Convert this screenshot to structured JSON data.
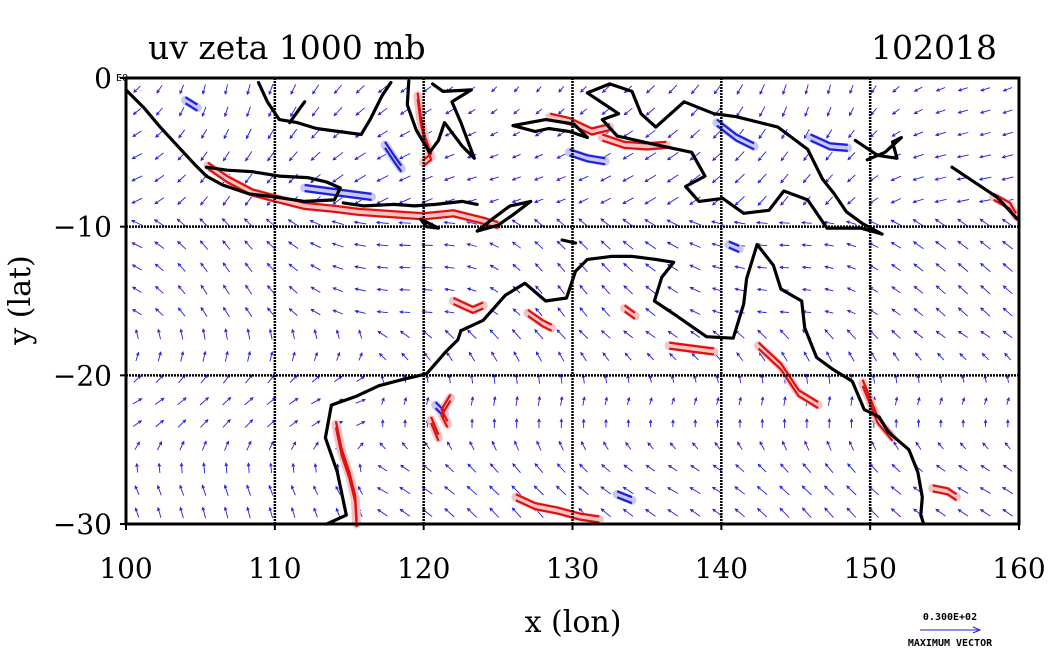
{
  "chart_data": {
    "type": "vector-field-contour-map",
    "title": "uv zeta 1000 mb",
    "date_label": "102018",
    "xlabel": "x (lon)",
    "ylabel": "y (lat)",
    "xlim": [
      100,
      160
    ],
    "ylim": [
      -30,
      0
    ],
    "x_ticks": [
      100,
      110,
      120,
      130,
      140,
      150,
      160
    ],
    "y_ticks": [
      0,
      -10,
      -20,
      -30
    ],
    "x_tick_labels": [
      "100",
      "110",
      "120",
      "130",
      "140",
      "150",
      "160"
    ],
    "y_tick_labels": [
      "0",
      "−10",
      "−20",
      "−30"
    ],
    "corner_label": "EQ",
    "grid": true,
    "vector_legend": {
      "magnitude": "0.300E+02",
      "label": "MAXIMUM VECTOR"
    },
    "colors": {
      "vectors": "#1f1fe0",
      "positive_contour": "#e01010",
      "positive_fill": "#f4c4c4",
      "negative_contour": "#1f1fe0",
      "negative_fill": "#c8c8f4",
      "coastline": "#000000",
      "grid": "#000000"
    },
    "coastlines": [
      [
        [
          100.0,
          -0.8
        ],
        [
          101.2,
          -2.0
        ],
        [
          102.3,
          -3.3
        ],
        [
          103.4,
          -4.5
        ],
        [
          104.6,
          -5.8
        ],
        [
          105.4,
          -6.6
        ]
      ],
      [
        [
          105.4,
          -6.0
        ],
        [
          106.8,
          -6.2
        ],
        [
          108.5,
          -6.3
        ],
        [
          110.3,
          -6.6
        ],
        [
          112.2,
          -6.7
        ],
        [
          113.5,
          -7.0
        ],
        [
          114.4,
          -7.4
        ],
        [
          114.0,
          -8.2
        ],
        [
          112.0,
          -8.3
        ],
        [
          110.0,
          -8.0
        ],
        [
          108.3,
          -7.8
        ],
        [
          106.5,
          -7.2
        ],
        [
          105.4,
          -6.6
        ]
      ],
      [
        [
          108.9,
          -0.3
        ],
        [
          109.5,
          -1.6
        ],
        [
          110.3,
          -2.8
        ],
        [
          111.5,
          -3.0
        ],
        [
          112.8,
          -3.4
        ],
        [
          114.3,
          -3.6
        ],
        [
          115.8,
          -3.8
        ],
        [
          116.4,
          -2.8
        ],
        [
          117.2,
          -1.2
        ],
        [
          117.8,
          -0.3
        ]
      ],
      [
        [
          119.0,
          -0.2
        ],
        [
          118.9,
          -1.8
        ],
        [
          119.5,
          -3.5
        ],
        [
          120.4,
          -5.0
        ],
        [
          121.0,
          -4.2
        ],
        [
          121.4,
          -3.0
        ],
        [
          122.6,
          -4.6
        ],
        [
          123.4,
          -5.4
        ],
        [
          122.5,
          -3.0
        ],
        [
          121.9,
          -1.6
        ],
        [
          123.2,
          -0.8
        ],
        [
          121.3,
          -0.9
        ],
        [
          120.6,
          -0.4
        ]
      ],
      [
        [
          126.0,
          -3.2
        ],
        [
          127.5,
          -3.6
        ],
        [
          128.4,
          -3.4
        ],
        [
          129.8,
          -3.6
        ],
        [
          131.0,
          -4.0
        ],
        [
          130.1,
          -3.1
        ],
        [
          128.2,
          -2.8
        ],
        [
          126.0,
          -3.2
        ]
      ],
      [
        [
          114.6,
          -8.4
        ],
        [
          116.0,
          -8.6
        ],
        [
          118.0,
          -8.5
        ],
        [
          119.4,
          -8.6
        ],
        [
          120.8,
          -8.5
        ],
        [
          122.6,
          -8.3
        ],
        [
          123.6,
          -8.5
        ]
      ],
      [
        [
          119.8,
          -9.5
        ],
        [
          121.0,
          -10.1
        ],
        [
          120.2,
          -10.0
        ],
        [
          119.8,
          -9.5
        ]
      ],
      [
        [
          123.6,
          -10.3
        ],
        [
          124.6,
          -9.5
        ],
        [
          125.8,
          -8.6
        ],
        [
          127.2,
          -8.3
        ],
        [
          126.0,
          -9.2
        ],
        [
          125.0,
          -9.9
        ],
        [
          123.6,
          -10.3
        ]
      ],
      [
        [
          131.0,
          -1.0
        ],
        [
          132.5,
          -0.4
        ],
        [
          134.0,
          -0.9
        ],
        [
          134.6,
          -2.4
        ],
        [
          135.6,
          -3.3
        ],
        [
          137.5,
          -1.6
        ],
        [
          139.5,
          -2.4
        ],
        [
          141.0,
          -2.6
        ],
        [
          143.8,
          -3.3
        ],
        [
          145.8,
          -4.8
        ],
        [
          146.8,
          -6.8
        ],
        [
          147.6,
          -7.8
        ],
        [
          148.4,
          -9.0
        ],
        [
          149.5,
          -9.8
        ],
        [
          150.8,
          -10.5
        ],
        [
          149.4,
          -10.1
        ],
        [
          147.1,
          -10.1
        ],
        [
          145.8,
          -8.2
        ],
        [
          144.2,
          -7.6
        ],
        [
          143.2,
          -8.9
        ],
        [
          141.5,
          -9.1
        ],
        [
          140.1,
          -8.1
        ],
        [
          138.5,
          -8.3
        ],
        [
          137.6,
          -7.3
        ],
        [
          138.9,
          -6.6
        ],
        [
          138.0,
          -5.0
        ],
        [
          135.2,
          -4.4
        ],
        [
          133.0,
          -3.9
        ],
        [
          132.0,
          -2.8
        ],
        [
          133.1,
          -2.4
        ],
        [
          131.0,
          -1.0
        ]
      ],
      [
        [
          149.0,
          -4.2
        ],
        [
          150.5,
          -5.2
        ],
        [
          151.8,
          -5.4
        ],
        [
          151.5,
          -4.3
        ],
        [
          152.1,
          -4.0
        ],
        [
          151.0,
          -5.0
        ],
        [
          149.8,
          -5.5
        ]
      ],
      [
        [
          155.5,
          -6.0
        ],
        [
          157.0,
          -7.0
        ],
        [
          158.5,
          -8.0
        ],
        [
          159.9,
          -9.5
        ]
      ],
      [
        [
          122.5,
          -17.0
        ],
        [
          124.0,
          -16.3
        ],
        [
          125.5,
          -14.6
        ],
        [
          126.8,
          -13.8
        ],
        [
          128.2,
          -15.0
        ],
        [
          129.6,
          -14.8
        ],
        [
          130.2,
          -13.0
        ],
        [
          131.0,
          -12.2
        ],
        [
          132.6,
          -12.0
        ],
        [
          134.0,
          -12.0
        ],
        [
          135.6,
          -12.2
        ],
        [
          136.8,
          -12.4
        ],
        [
          136.0,
          -13.4
        ],
        [
          135.5,
          -15.0
        ],
        [
          137.0,
          -16.0
        ],
        [
          139.0,
          -17.4
        ],
        [
          140.8,
          -17.5
        ],
        [
          141.5,
          -15.2
        ],
        [
          141.7,
          -13.5
        ],
        [
          142.4,
          -11.2
        ],
        [
          143.5,
          -12.6
        ],
        [
          144.0,
          -14.2
        ],
        [
          145.4,
          -15.0
        ],
        [
          145.6,
          -16.8
        ],
        [
          146.4,
          -18.8
        ],
        [
          147.5,
          -19.6
        ],
        [
          148.8,
          -20.4
        ],
        [
          149.6,
          -22.3
        ],
        [
          150.6,
          -22.8
        ],
        [
          151.2,
          -23.8
        ],
        [
          152.6,
          -25.0
        ],
        [
          153.2,
          -26.5
        ],
        [
          153.5,
          -28.2
        ],
        [
          153.4,
          -29.4
        ],
        [
          153.6,
          -30.0
        ]
      ],
      [
        [
          113.5,
          -30.0
        ],
        [
          114.8,
          -29.4
        ],
        [
          114.2,
          -26.5
        ],
        [
          113.4,
          -24.2
        ],
        [
          113.8,
          -22.0
        ],
        [
          115.5,
          -21.4
        ],
        [
          117.0,
          -20.7
        ],
        [
          118.5,
          -20.3
        ],
        [
          120.2,
          -19.9
        ],
        [
          121.5,
          -18.4
        ],
        [
          122.3,
          -17.6
        ],
        [
          122.5,
          -17.0
        ]
      ],
      [
        [
          111.0,
          -3.0
        ],
        [
          112.0,
          -1.6
        ]
      ],
      [
        [
          129.3,
          -10.9
        ],
        [
          130.2,
          -11.1
        ]
      ]
    ],
    "positive_vorticity_contours": [
      [
        [
          105.5,
          -5.9
        ],
        [
          106.8,
          -6.8
        ],
        [
          108.5,
          -7.7
        ],
        [
          110.0,
          -8.1
        ],
        [
          112.0,
          -8.6
        ],
        [
          114.0,
          -8.8
        ],
        [
          115.6,
          -9.0
        ],
        [
          117.0,
          -9.1
        ],
        [
          118.5,
          -9.2
        ],
        [
          120.0,
          -9.3
        ],
        [
          122.0,
          -9.1
        ],
        [
          124.0,
          -9.6
        ],
        [
          125.0,
          -9.9
        ]
      ],
      [
        [
          114.1,
          -23.3
        ],
        [
          114.5,
          -25.2
        ],
        [
          115.0,
          -26.7
        ],
        [
          115.4,
          -28.3
        ],
        [
          115.5,
          -30.0
        ]
      ],
      [
        [
          119.6,
          -1.2
        ],
        [
          119.8,
          -2.8
        ],
        [
          120.1,
          -4.2
        ],
        [
          120.5,
          -5.3
        ],
        [
          120.0,
          -5.7
        ]
      ],
      [
        [
          128.5,
          -2.6
        ],
        [
          129.8,
          -2.9
        ],
        [
          131.3,
          -3.6
        ],
        [
          132.5,
          -3.3
        ]
      ],
      [
        [
          132.0,
          -4.0
        ],
        [
          133.5,
          -4.5
        ],
        [
          135.0,
          -4.6
        ],
        [
          136.3,
          -4.5
        ]
      ],
      [
        [
          142.5,
          -18.0
        ],
        [
          144.0,
          -19.4
        ],
        [
          145.2,
          -21.2
        ],
        [
          146.5,
          -22.0
        ]
      ],
      [
        [
          149.5,
          -20.5
        ],
        [
          150.5,
          -23.0
        ],
        [
          151.5,
          -24.2
        ]
      ],
      [
        [
          122.0,
          -15.0
        ],
        [
          123.3,
          -15.6
        ],
        [
          124.0,
          -15.3
        ]
      ],
      [
        [
          126.2,
          -28.2
        ],
        [
          127.5,
          -28.8
        ],
        [
          129.0,
          -29.1
        ],
        [
          130.5,
          -29.5
        ],
        [
          131.8,
          -29.7
        ]
      ],
      [
        [
          121.8,
          -21.5
        ],
        [
          121.2,
          -22.5
        ],
        [
          121.6,
          -23.3
        ]
      ],
      [
        [
          127.0,
          -15.8
        ],
        [
          128.0,
          -16.5
        ],
        [
          128.6,
          -16.8
        ]
      ],
      [
        [
          136.5,
          -18.0
        ],
        [
          138.0,
          -18.2
        ],
        [
          139.5,
          -18.4
        ]
      ],
      [
        [
          154.2,
          -27.6
        ],
        [
          155.2,
          -27.8
        ],
        [
          155.8,
          -28.2
        ]
      ],
      [
        [
          158.3,
          -8.0
        ],
        [
          159.4,
          -8.6
        ],
        [
          159.8,
          -9.3
        ]
      ],
      [
        [
          133.5,
          -15.5
        ],
        [
          134.2,
          -16.0
        ]
      ],
      [
        [
          120.5,
          -23.0
        ],
        [
          121.0,
          -24.2
        ]
      ]
    ],
    "negative_vorticity_contours": [
      [
        [
          112.0,
          -7.4
        ],
        [
          113.5,
          -7.6
        ],
        [
          115.0,
          -7.8
        ],
        [
          116.5,
          -8.0
        ]
      ],
      [
        [
          117.4,
          -4.5
        ],
        [
          118.0,
          -5.4
        ],
        [
          118.5,
          -6.1
        ]
      ],
      [
        [
          129.8,
          -5.0
        ],
        [
          131.0,
          -5.4
        ],
        [
          132.2,
          -5.6
        ]
      ],
      [
        [
          139.7,
          -3.0
        ],
        [
          141.0,
          -4.0
        ],
        [
          142.2,
          -4.6
        ]
      ],
      [
        [
          146.0,
          -4.0
        ],
        [
          147.3,
          -4.6
        ],
        [
          148.5,
          -4.7
        ]
      ],
      [
        [
          133.0,
          -28.0
        ],
        [
          134.0,
          -28.4
        ]
      ],
      [
        [
          120.8,
          -22.0
        ],
        [
          121.4,
          -22.6
        ]
      ],
      [
        [
          140.5,
          -11.2
        ],
        [
          141.2,
          -11.5
        ]
      ],
      [
        [
          104.0,
          -1.5
        ],
        [
          104.8,
          -2.0
        ]
      ]
    ],
    "wind_field_note": "1000 mb wind vectors drawn on a regular grid over 100–160 E, 0–30 S"
  }
}
